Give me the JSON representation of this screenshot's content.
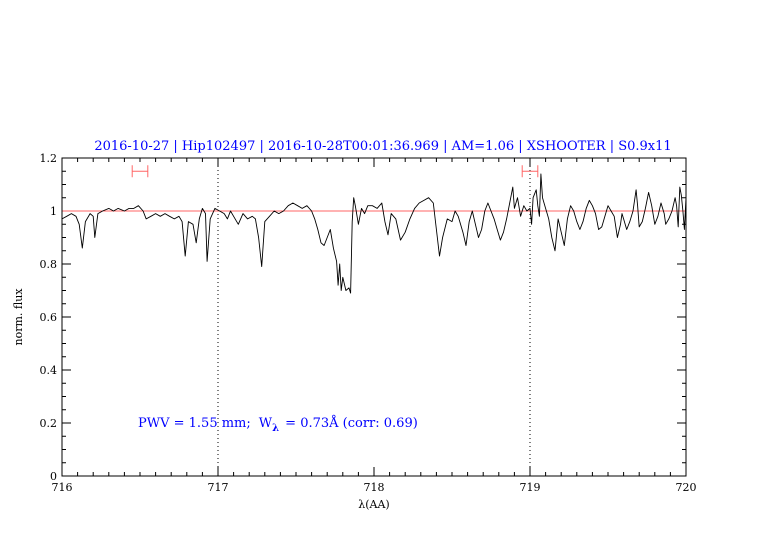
{
  "chart_data": {
    "type": "line",
    "title": "2016-10-27 | Hip102497 | 2016-10-28T00:01:36.969 | AM=1.06 | XSHOOTER | S0.9x11",
    "xlabel": "λ(AA)",
    "ylabel": "norm. flux",
    "xlim": [
      716,
      720
    ],
    "ylim": [
      0,
      1.2
    ],
    "x_ticks": [
      "716",
      "717",
      "718",
      "719",
      "720"
    ],
    "y_ticks": [
      "0",
      "0.2",
      "0.4",
      "0.6",
      "0.8",
      "1",
      "1.2"
    ],
    "annotation": {
      "pwv": "PWV = 1.55 mm;",
      "w": "W",
      "w_sub": "λ",
      "w_val": "= 0.73Å (corr: 0.69)"
    },
    "reference_line": {
      "y": 1.0,
      "color": "#ff6666"
    },
    "vertical_markers": [
      717.0,
      719.0
    ],
    "error_bars": [
      {
        "x_min": 716.45,
        "x_max": 716.55,
        "y": 1.15
      },
      {
        "x_min": 718.95,
        "x_max": 719.05,
        "y": 1.15
      }
    ],
    "series": [
      {
        "color": "#000000",
        "points": [
          [
            716.0,
            0.97
          ],
          [
            716.03,
            0.98
          ],
          [
            716.06,
            0.99
          ],
          [
            716.09,
            0.98
          ],
          [
            716.11,
            0.95
          ],
          [
            716.13,
            0.86
          ],
          [
            716.15,
            0.96
          ],
          [
            716.18,
            0.99
          ],
          [
            716.2,
            0.98
          ],
          [
            716.21,
            0.9
          ],
          [
            716.23,
            0.99
          ],
          [
            716.26,
            1.0
          ],
          [
            716.3,
            1.01
          ],
          [
            716.33,
            1.0
          ],
          [
            716.36,
            1.01
          ],
          [
            716.4,
            1.0
          ],
          [
            716.43,
            1.01
          ],
          [
            716.46,
            1.01
          ],
          [
            716.49,
            1.02
          ],
          [
            716.52,
            1.0
          ],
          [
            716.54,
            0.97
          ],
          [
            716.57,
            0.98
          ],
          [
            716.6,
            0.99
          ],
          [
            716.63,
            0.98
          ],
          [
            716.66,
            0.99
          ],
          [
            716.69,
            0.98
          ],
          [
            716.72,
            0.97
          ],
          [
            716.75,
            0.98
          ],
          [
            716.77,
            0.96
          ],
          [
            716.79,
            0.83
          ],
          [
            716.81,
            0.96
          ],
          [
            716.84,
            0.95
          ],
          [
            716.86,
            0.88
          ],
          [
            716.88,
            0.97
          ],
          [
            716.9,
            1.01
          ],
          [
            716.92,
            0.99
          ],
          [
            716.93,
            0.81
          ],
          [
            716.95,
            0.97
          ],
          [
            716.98,
            1.01
          ],
          [
            717.01,
            1.0
          ],
          [
            717.04,
            0.99
          ],
          [
            717.06,
            0.97
          ],
          [
            717.08,
            1.0
          ],
          [
            717.1,
            0.98
          ],
          [
            717.13,
            0.95
          ],
          [
            717.16,
            0.99
          ],
          [
            717.19,
            0.97
          ],
          [
            717.22,
            0.98
          ],
          [
            717.24,
            0.97
          ],
          [
            717.26,
            0.9
          ],
          [
            717.28,
            0.79
          ],
          [
            717.3,
            0.96
          ],
          [
            717.33,
            0.98
          ],
          [
            717.36,
            1.0
          ],
          [
            717.39,
            0.99
          ],
          [
            717.42,
            1.0
          ],
          [
            717.45,
            1.02
          ],
          [
            717.48,
            1.03
          ],
          [
            717.51,
            1.02
          ],
          [
            717.54,
            1.01
          ],
          [
            717.57,
            1.02
          ],
          [
            717.6,
            1.0
          ],
          [
            717.62,
            0.97
          ],
          [
            717.64,
            0.93
          ],
          [
            717.66,
            0.88
          ],
          [
            717.68,
            0.87
          ],
          [
            717.7,
            0.9
          ],
          [
            717.72,
            0.93
          ],
          [
            717.74,
            0.86
          ],
          [
            717.76,
            0.81
          ],
          [
            717.77,
            0.72
          ],
          [
            717.78,
            0.8
          ],
          [
            717.79,
            0.7
          ],
          [
            717.8,
            0.75
          ],
          [
            717.82,
            0.7
          ],
          [
            717.84,
            0.71
          ],
          [
            717.85,
            0.69
          ],
          [
            717.86,
            0.96
          ],
          [
            717.87,
            1.05
          ],
          [
            717.88,
            1.02
          ],
          [
            717.9,
            0.95
          ],
          [
            717.92,
            1.01
          ],
          [
            717.94,
            0.99
          ],
          [
            717.96,
            1.02
          ],
          [
            717.99,
            1.02
          ],
          [
            718.02,
            1.01
          ],
          [
            718.05,
            1.03
          ],
          [
            718.07,
            0.96
          ],
          [
            718.09,
            0.91
          ],
          [
            718.11,
            0.99
          ],
          [
            718.14,
            0.97
          ],
          [
            718.17,
            0.89
          ],
          [
            718.2,
            0.92
          ],
          [
            718.23,
            0.97
          ],
          [
            718.26,
            1.01
          ],
          [
            718.29,
            1.03
          ],
          [
            718.32,
            1.04
          ],
          [
            718.35,
            1.05
          ],
          [
            718.38,
            1.03
          ],
          [
            718.4,
            0.93
          ],
          [
            718.42,
            0.83
          ],
          [
            718.44,
            0.9
          ],
          [
            718.47,
            0.97
          ],
          [
            718.5,
            0.96
          ],
          [
            718.52,
            1.0
          ],
          [
            718.54,
            0.98
          ],
          [
            718.57,
            0.92
          ],
          [
            718.59,
            0.87
          ],
          [
            718.61,
            0.96
          ],
          [
            718.63,
            1.0
          ],
          [
            718.65,
            0.95
          ],
          [
            718.67,
            0.9
          ],
          [
            718.69,
            0.93
          ],
          [
            718.71,
            1.0
          ],
          [
            718.73,
            1.03
          ],
          [
            718.75,
            1.0
          ],
          [
            718.77,
            0.97
          ],
          [
            718.79,
            0.93
          ],
          [
            718.81,
            0.89
          ],
          [
            718.83,
            0.92
          ],
          [
            718.85,
            0.97
          ],
          [
            718.87,
            1.03
          ],
          [
            718.89,
            1.09
          ],
          [
            718.9,
            1.01
          ],
          [
            718.92,
            1.05
          ],
          [
            718.94,
            0.98
          ],
          [
            718.96,
            1.02
          ],
          [
            718.98,
            1.0
          ],
          [
            719.0,
            1.01
          ],
          [
            719.01,
            0.95
          ],
          [
            719.02,
            1.05
          ],
          [
            719.04,
            1.08
          ],
          [
            719.05,
            1.02
          ],
          [
            719.06,
            0.98
          ],
          [
            719.07,
            1.14
          ],
          [
            719.08,
            1.05
          ],
          [
            719.1,
            1.01
          ],
          [
            719.12,
            0.97
          ],
          [
            719.14,
            0.9
          ],
          [
            719.16,
            0.85
          ],
          [
            719.18,
            0.97
          ],
          [
            719.2,
            0.92
          ],
          [
            719.22,
            0.87
          ],
          [
            719.24,
            0.97
          ],
          [
            719.26,
            1.02
          ],
          [
            719.28,
            1.0
          ],
          [
            719.3,
            0.96
          ],
          [
            719.32,
            0.93
          ],
          [
            719.34,
            0.96
          ],
          [
            719.36,
            1.01
          ],
          [
            719.38,
            1.04
          ],
          [
            719.4,
            1.02
          ],
          [
            719.42,
            0.99
          ],
          [
            719.44,
            0.93
          ],
          [
            719.46,
            0.94
          ],
          [
            719.48,
            0.98
          ],
          [
            719.5,
            1.02
          ],
          [
            719.52,
            1.0
          ],
          [
            719.54,
            0.98
          ],
          [
            719.56,
            0.9
          ],
          [
            719.58,
            0.95
          ],
          [
            719.59,
            0.99
          ],
          [
            719.6,
            0.97
          ],
          [
            719.62,
            0.93
          ],
          [
            719.64,
            0.96
          ],
          [
            719.66,
            1.0
          ],
          [
            719.68,
            1.08
          ],
          [
            719.69,
            1.02
          ],
          [
            719.7,
            0.94
          ],
          [
            719.72,
            0.96
          ],
          [
            719.74,
            1.01
          ],
          [
            719.76,
            1.07
          ],
          [
            719.78,
            1.02
          ],
          [
            719.8,
            0.95
          ],
          [
            719.82,
            0.98
          ],
          [
            719.84,
            1.03
          ],
          [
            719.86,
            0.99
          ],
          [
            719.87,
            0.95
          ],
          [
            719.89,
            0.97
          ],
          [
            719.91,
            1.0
          ],
          [
            719.93,
            1.05
          ],
          [
            719.94,
            1.02
          ],
          [
            719.95,
            0.94
          ],
          [
            719.96,
            1.09
          ],
          [
            719.97,
            1.06
          ],
          [
            719.98,
            1.0
          ],
          [
            719.99,
            0.93
          ],
          [
            720.0,
            1.05
          ]
        ]
      }
    ]
  }
}
